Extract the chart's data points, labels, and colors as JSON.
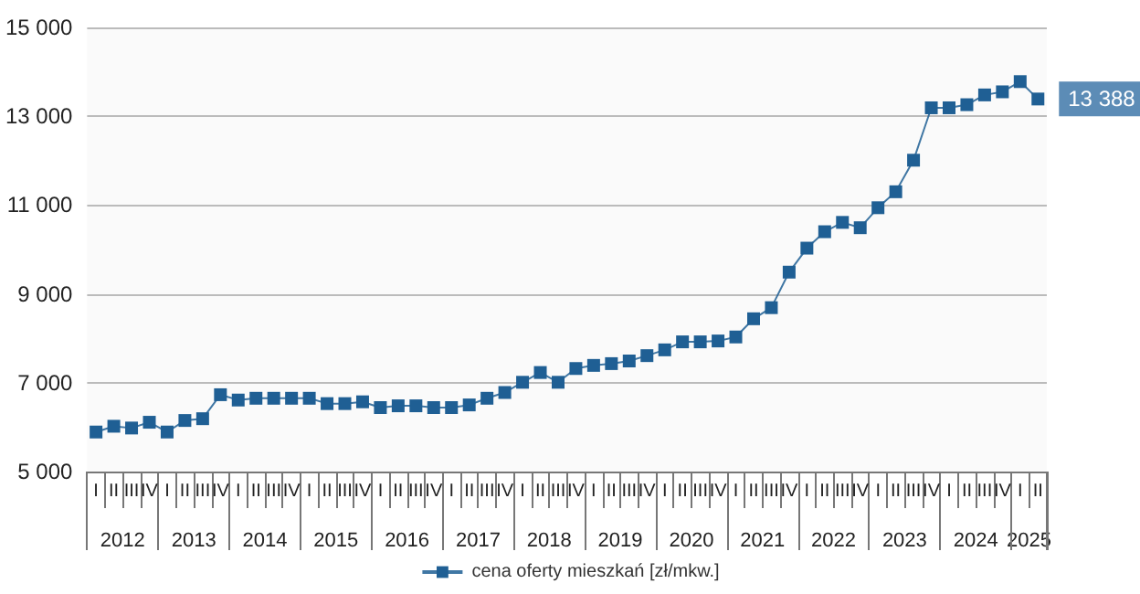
{
  "chart_data": {
    "type": "line",
    "categories": [
      "I",
      "II",
      "III",
      "IV",
      "I",
      "II",
      "III",
      "IV",
      "I",
      "II",
      "III",
      "IV",
      "I",
      "II",
      "III",
      "IV",
      "I",
      "II",
      "III",
      "IV",
      "I",
      "II",
      "III",
      "IV",
      "I",
      "II",
      "III",
      "IV",
      "I",
      "II",
      "III",
      "IV",
      "I",
      "II",
      "III",
      "IV",
      "I",
      "II",
      "III",
      "IV",
      "I",
      "II",
      "III",
      "IV",
      "I",
      "II",
      "III",
      "IV",
      "I",
      "II",
      "III",
      "IV",
      "I",
      "II"
    ],
    "series": [
      {
        "name": "cena oferty mieszkań [zł/mkw.]",
        "color": "#1f5f94",
        "values": [
          5890,
          6020,
          5980,
          6110,
          5890,
          6150,
          6190,
          6730,
          6610,
          6650,
          6650,
          6650,
          6650,
          6530,
          6530,
          6570,
          6440,
          6480,
          6480,
          6440,
          6440,
          6500,
          6650,
          6780,
          7010,
          7230,
          7010,
          7320,
          7390,
          7430,
          7490,
          7610,
          7740,
          7920,
          7920,
          7940,
          8030,
          8440,
          8690,
          9490,
          10030,
          10400,
          10610,
          10490,
          10940,
          11300,
          12010,
          13190,
          13190,
          13260,
          13480,
          13550,
          13780,
          13388
        ],
        "value_labels": [
          null,
          null,
          null,
          null,
          null,
          null,
          null,
          null,
          null,
          null,
          null,
          null,
          null,
          null,
          null,
          null,
          null,
          null,
          null,
          null,
          null,
          null,
          null,
          null,
          null,
          null,
          null,
          null,
          null,
          null,
          null,
          null,
          null,
          null,
          null,
          null,
          null,
          null,
          null,
          null,
          null,
          null,
          null,
          null,
          null,
          null,
          null,
          null,
          null,
          null,
          null,
          null,
          null,
          "13 388"
        ]
      }
    ],
    "annotations": [
      "2012",
      "2013",
      "2014",
      "2015",
      "2016",
      "2017",
      "2018",
      "2019",
      "2020",
      "2021",
      "2022",
      "2023",
      "2024",
      "2025"
    ],
    "ylim": [
      5000,
      15000
    ],
    "yticks": [
      5000,
      7000,
      9000,
      11000,
      13000,
      15000
    ],
    "grid": "y",
    "legend": "bottom",
    "marker": "square",
    "line_style": "solid"
  }
}
